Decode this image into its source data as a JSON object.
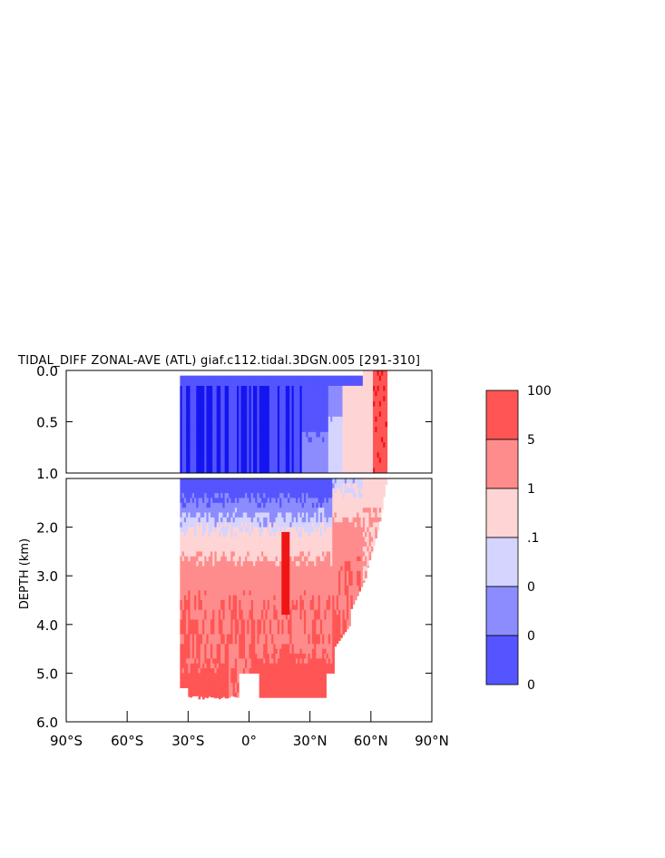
{
  "chart_data": {
    "type": "heatmap",
    "title": "TIDAL_DIFF ZONAL-AVE (ATL) giaf.c112.tidal.3DGN.005 [291-310]",
    "ylabel": "DEPTH (km)",
    "xlabel": "",
    "x_tick_labels": [
      "90°S",
      "60°S",
      "30°S",
      "0°",
      "30°N",
      "60°N",
      "90°N"
    ],
    "x_ticks": [
      -90,
      -60,
      -30,
      0,
      30,
      60,
      90
    ],
    "xlim": [
      -90,
      90
    ],
    "upper_panel": {
      "ylim": [
        0.0,
        1.0
      ],
      "y_ticks": [
        0.0,
        0.5,
        1.0
      ],
      "y_tick_labels": [
        "0.0",
        "0.5",
        "1.0"
      ]
    },
    "lower_panel": {
      "ylim": [
        1.0,
        6.0
      ],
      "y_ticks": [
        2.0,
        3.0,
        4.0,
        5.0,
        6.0
      ],
      "y_tick_labels": [
        "2.0",
        "3.0",
        "4.0",
        "5.0",
        "6.0"
      ]
    },
    "colorbar": {
      "labels": [
        "100",
        "5",
        "1",
        ".1",
        "0",
        "0",
        "0"
      ],
      "colors": [
        "#ff5555",
        "#ff8c8c",
        "#ffd4d4",
        "#d4d4ff",
        "#8c8cff",
        "#5555ff"
      ]
    },
    "region": {
      "lat_range": [
        -34,
        68
      ],
      "colors": {
        "deep_blue": "#1515f0",
        "mid_blue": "#5555ff",
        "light_blue": "#8c8cff",
        "pale_blue": "#d4d4ff",
        "pale_red": "#ffd4d4",
        "light_red": "#ff8c8c",
        "red": "#ff5555",
        "deep_red": "#f01515"
      }
    }
  }
}
